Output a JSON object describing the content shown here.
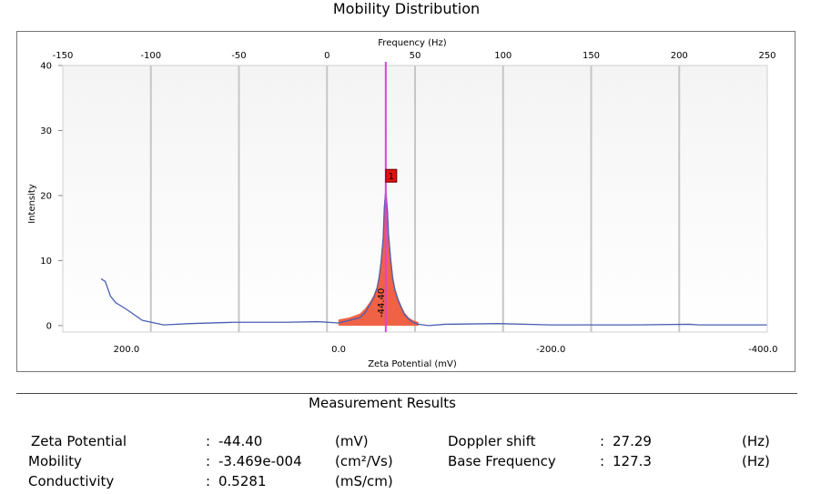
{
  "chart_data": {
    "type": "area",
    "title": "Mobility Distribution",
    "top_axis": {
      "label": "Frequency (Hz)",
      "ticks": [
        -150,
        -100,
        -50,
        0,
        50,
        100,
        150,
        200,
        250
      ],
      "range": [
        -150,
        250
      ]
    },
    "bottom_axis": {
      "label": "Zeta Potential (mV)",
      "ticks": [
        200.0,
        0.0,
        -200.0,
        -400.0
      ],
      "tick_labels": [
        "200.0",
        "0.0",
        "-200.0",
        "-400.0"
      ],
      "range": [
        260,
        -404
      ]
    },
    "y_axis": {
      "label": "Intensity",
      "ticks": [
        0,
        10,
        20,
        30,
        40
      ],
      "range": [
        -1,
        40
      ]
    },
    "grid": true,
    "peak": {
      "marker_label": "1",
      "value_label": "-44.40",
      "zeta": -44.4,
      "intensity": 20.8
    },
    "series": [
      {
        "color": "#4a5fb0",
        "x": [
          224,
          220,
          215,
          210,
          200,
          185,
          165,
          140,
          100,
          50,
          20,
          0,
          -10,
          -20,
          -25,
          -30,
          -33,
          -36,
          -38,
          -40,
          -42,
          -43,
          -44.4,
          -46,
          -47,
          -49,
          -51,
          -53,
          -56,
          -59,
          -62,
          -66,
          -70,
          -75,
          -85,
          -100,
          -150,
          -200,
          -280,
          -330,
          -340,
          -404
        ],
        "y": [
          7.2,
          6.8,
          4.5,
          3.5,
          2.5,
          0.8,
          0.1,
          0.3,
          0.5,
          0.5,
          0.6,
          0.4,
          0.8,
          1.2,
          2.0,
          3.4,
          4.3,
          5.6,
          7.2,
          9.8,
          13.5,
          18.0,
          20.8,
          17.6,
          14.0,
          10.2,
          7.2,
          5.5,
          3.9,
          2.8,
          1.7,
          1.0,
          0.5,
          0.2,
          0.0,
          0.2,
          0.3,
          0.1,
          0.1,
          0.2,
          0.1,
          0.1
        ]
      },
      {
        "color": "#f05a3c",
        "x": [
          0,
          -10,
          -20,
          -25,
          -30,
          -33,
          -36,
          -38,
          -40,
          -42,
          -43,
          -44.4,
          -46,
          -47,
          -49,
          -51,
          -53,
          -56,
          -59,
          -62,
          -66,
          -70,
          -75
        ],
        "y": [
          0.9,
          1.2,
          1.8,
          2.6,
          3.7,
          4.6,
          5.9,
          7.6,
          10.2,
          14.0,
          18.5,
          21.6,
          18.2,
          14.4,
          10.6,
          7.6,
          5.8,
          4.2,
          3.0,
          2.0,
          1.2,
          0.8,
          0.5
        ]
      }
    ]
  },
  "results": {
    "title": "Measurement Results",
    "rows": [
      {
        "label": "Zeta Potential",
        "value": "-44.40",
        "unit": "(mV)"
      },
      {
        "label": "Mobility",
        "value": "-3.469e-004",
        "unit": "(cm²/Vs)"
      },
      {
        "label": "Conductivity",
        "value": "0.5281",
        "unit": "(mS/cm)"
      }
    ],
    "right_rows": [
      {
        "label": "Doppler shift",
        "value": "27.29",
        "unit": "(Hz)"
      },
      {
        "label": "Base Frequency",
        "value": "127.3",
        "unit": "(Hz)"
      }
    ]
  }
}
